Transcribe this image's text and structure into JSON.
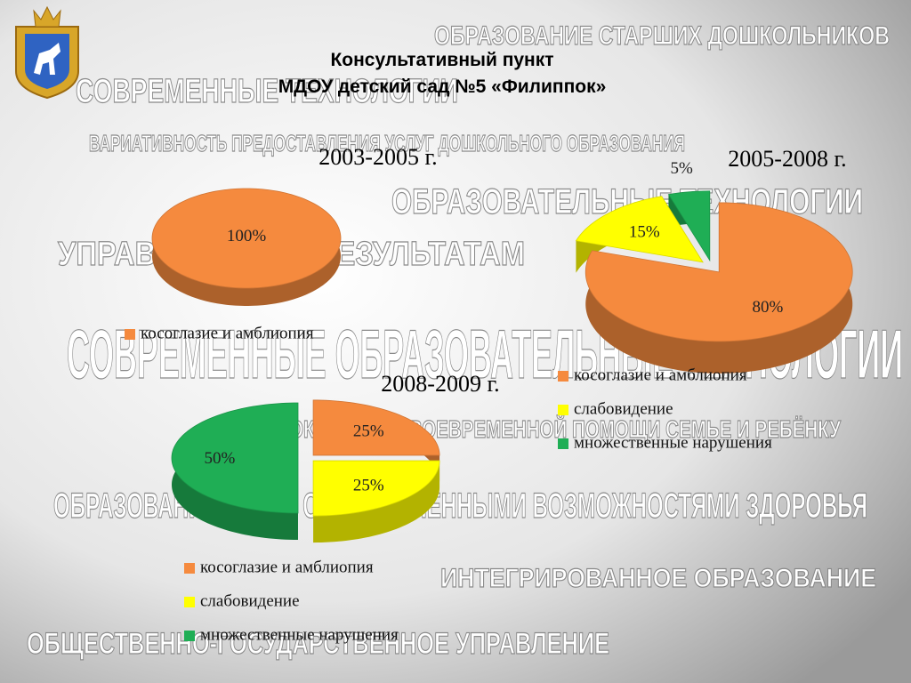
{
  "title": [
    "Консультативный  пункт",
    "МДОУ детский сад №5 «Филиппок»"
  ],
  "background_texts": [
    "ОБРАЗОВАНИЕ СТАРШИХ ДОШКОЛЬНИКОВ",
    "СОВРЕМЕННЫЕ ТЕХНОЛОГИИ",
    "ВАРИАТИВНОСТЬ ПРЕДОСТАВЛЕНИЯ УСЛУГ ДОШКОЛЬНОГО ОБРАЗОВАНИЯ",
    "ОБРАЗОВАТЕЛЬНЫЕ ТЕХНОЛОГИИ",
    "УПРАВЛЕНИЕ ПО РЕЗУЛЬТАТАМ",
    "СОВРЕМЕННЫЕ ОБРАЗОВАТЕЛЬНЫЕ ТЕХНОЛОГИИ",
    "ОКАЗАНИЕ СВОЕВРЕМЕННОЙ ПОМОЩИ СЕМЬЕ И РЕБЁНКУ",
    "ОБРАЗОВАНИЕ ДЕТЕЙ С ОГРАНИЧЕННЫМИ ВОЗМОЖНОСТЯМИ ЗДОРОВЬЯ",
    "ИНТЕГРИРОВАННОЕ ОБРАЗОВАНИЕ",
    "ОБЩЕСТВЕННО-ГОСУДАРСТВЕННОЕ УПРАВЛЕНИЕ"
  ],
  "chart_data": [
    {
      "type": "pie",
      "title": "2003-2005 г.",
      "categories": [
        "косоглазие и амблиопия"
      ],
      "values": [
        100
      ],
      "value_labels": [
        "100%"
      ],
      "colors": [
        "#f58a3e"
      ]
    },
    {
      "type": "pie",
      "title": "2005-2008 г.",
      "categories": [
        "косоглазие и амблиопия",
        "слабовидение",
        "множественные нарушения"
      ],
      "values": [
        80,
        15,
        5
      ],
      "value_labels": [
        "80%",
        "15%",
        "5%"
      ],
      "colors": [
        "#f58a3e",
        "#ffff00",
        "#1fae55"
      ]
    },
    {
      "type": "pie",
      "title": "2008-2009 г.",
      "categories": [
        "косоглазие и амблиопия",
        "слабовидение",
        "множественные нарушения"
      ],
      "values": [
        25,
        25,
        50
      ],
      "value_labels": [
        "25%",
        "25%",
        "50%"
      ],
      "colors": [
        "#f58a3e",
        "#ffff00",
        "#1fae55"
      ]
    }
  ]
}
